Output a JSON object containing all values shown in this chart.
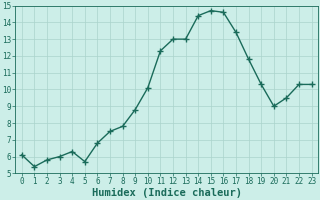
{
  "xlabel": "Humidex (Indice chaleur)",
  "x": [
    0,
    1,
    2,
    3,
    4,
    5,
    6,
    7,
    8,
    9,
    10,
    11,
    12,
    13,
    14,
    15,
    16,
    17,
    18,
    19,
    20,
    21,
    22,
    23
  ],
  "y": [
    6.1,
    5.4,
    5.8,
    6.0,
    6.3,
    5.7,
    6.8,
    7.5,
    7.8,
    8.8,
    10.1,
    12.3,
    13.0,
    13.0,
    14.4,
    14.7,
    14.6,
    13.4,
    11.8,
    10.3,
    9.0,
    9.5,
    10.3,
    10.3
  ],
  "line_color": "#1a6b5a",
  "marker": "+",
  "marker_size": 4,
  "marker_linewidth": 1.0,
  "line_width": 1.0,
  "bg_color": "#cceee8",
  "grid_color": "#aad4cc",
  "ylim": [
    5,
    15
  ],
  "xlim": [
    -0.5,
    23.5
  ],
  "yticks": [
    5,
    6,
    7,
    8,
    9,
    10,
    11,
    12,
    13,
    14,
    15
  ],
  "xticks": [
    0,
    1,
    2,
    3,
    4,
    5,
    6,
    7,
    8,
    9,
    10,
    11,
    12,
    13,
    14,
    15,
    16,
    17,
    18,
    19,
    20,
    21,
    22,
    23
  ],
  "tick_label_fontsize": 5.5,
  "xlabel_fontsize": 7.5,
  "tick_color": "#1a6b5a",
  "xlabel_color": "#1a6b5a",
  "spine_color": "#1a6b5a"
}
